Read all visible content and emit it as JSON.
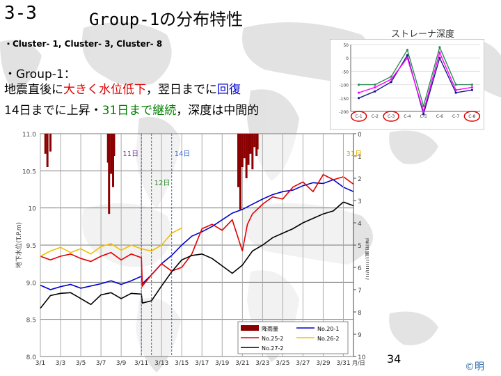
{
  "slide": {
    "number": "3-3",
    "title": "Group-1の分布特性",
    "clusters": "・Cluster- 1,  Cluster- 3,  Cluster- 8",
    "group_heading": "・Group-1：",
    "line1": {
      "a": "地震直後に",
      "b": "大きく水位低下",
      "c": "，翌日までに",
      "d": "回復"
    },
    "line2": {
      "a": "14日までに上昇・",
      "b": "31日まで継続",
      "c": "，深度は中間的"
    },
    "page": "34",
    "copyright": "©明"
  },
  "colors": {
    "red": "#e00000",
    "blue": "#0000cc",
    "green": "#008000",
    "rain": "#8b0000",
    "black": "#000000",
    "yellow": "#f0c000"
  },
  "chart_data": [
    {
      "type": "line",
      "title": "ストレーナ深度",
      "categories": [
        "C-1",
        "C-2",
        "C-3",
        "C-4",
        "C-5",
        "C-6",
        "C-7",
        "C-8"
      ],
      "ylim": [
        -200,
        50
      ],
      "yticks": [
        50,
        0,
        -50,
        -100,
        -150,
        -200
      ],
      "highlighted_categories": [
        "C-1",
        "C-3",
        "C-8"
      ],
      "series": [
        {
          "name": "",
          "color": "#1a1a8c",
          "values": [
            -150,
            -125,
            -90,
            10,
            -210,
            0,
            -130,
            -120
          ]
        },
        {
          "name": "",
          "color": "#ff00ff",
          "values": [
            -130,
            -110,
            -80,
            0,
            -200,
            20,
            -120,
            -110
          ]
        },
        {
          "name": "",
          "color": "#2e8b57",
          "values": [
            -100,
            -100,
            -70,
            30,
            -180,
            40,
            -100,
            -100
          ]
        }
      ]
    },
    {
      "type": "line",
      "xlabel": "月/日",
      "ylabel": "地下水位(T.P.m)",
      "y2label": "降雨量(mm/h)",
      "x_ticks": [
        "3/1",
        "3/3",
        "3/5",
        "3/7",
        "3/9",
        "3/11",
        "3/13",
        "3/15",
        "3/17",
        "3/19",
        "3/21",
        "3/23",
        "3/25",
        "3/27",
        "3/29",
        "3/31"
      ],
      "xlim": [
        1,
        32
      ],
      "y_ticks": [
        11.0,
        10.5,
        10.0,
        9.5,
        9.0,
        8.5,
        8.0
      ],
      "y_tick_labels": [
        "11.0",
        "10.5",
        "10",
        "9.5",
        "9.0",
        "8.5",
        "8.0"
      ],
      "ylim": [
        8.0,
        11.0
      ],
      "y2_ticks": [
        0,
        1,
        2,
        3,
        4,
        5,
        6,
        7,
        8,
        9,
        10
      ],
      "y2lim": [
        0,
        10
      ],
      "annotations": [
        {
          "text": "11日",
          "x": 11.0
        },
        {
          "text": "12日",
          "x": 12.0
        },
        {
          "text": "14日",
          "x": 14.0
        },
        {
          "text": "31日",
          "x": 31.0
        }
      ],
      "legend": [
        "降雨量",
        "No.20-1",
        "No.25-2",
        "No.26-2",
        "No.27-2"
      ],
      "series": [
        {
          "name": "降雨量",
          "kind": "bar",
          "x": [
            1.5,
            1.7,
            2.0,
            7.7,
            7.8,
            8.0,
            8.2,
            8.3,
            20.6,
            20.8,
            21.0,
            21.2,
            21.4,
            21.6,
            21.8,
            22.0,
            22.2,
            22.4,
            22.5
          ],
          "values": [
            0.9,
            1.5,
            0.8,
            1.3,
            3.6,
            1.8,
            2.4,
            1.0,
            2.4,
            3.4,
            1.5,
            1.1,
            2.0,
            1.4,
            0.9,
            1.6,
            0.6,
            1.0,
            0.7
          ]
        },
        {
          "name": "No.20-1",
          "color": "#0000cc",
          "x": [
            1,
            2,
            3,
            4,
            5,
            6,
            7,
            8,
            9,
            10,
            11,
            11.1,
            12,
            13,
            14,
            15,
            16,
            17,
            18,
            19,
            20,
            21,
            22,
            23,
            24,
            25,
            26,
            27,
            28,
            29,
            30,
            31,
            32
          ],
          "values": [
            8.96,
            8.9,
            8.94,
            8.97,
            8.92,
            8.95,
            8.98,
            9.02,
            8.97,
            9.02,
            9.08,
            8.98,
            9.1,
            9.25,
            9.36,
            9.5,
            9.62,
            9.68,
            9.75,
            9.84,
            9.93,
            9.98,
            10.05,
            10.12,
            10.18,
            10.22,
            10.24,
            10.3,
            10.34,
            10.33,
            10.38,
            10.28,
            10.22
          ]
        },
        {
          "name": "No.25-2",
          "color": "#e00000",
          "x": [
            1,
            2,
            3,
            4,
            5,
            6,
            7,
            8,
            9,
            10,
            11,
            11.1,
            12,
            13,
            14,
            15,
            16,
            17,
            18,
            19,
            20,
            21,
            21.5,
            22,
            23,
            24,
            25,
            26,
            27,
            28,
            29,
            30,
            31,
            32
          ],
          "values": [
            9.35,
            9.3,
            9.35,
            9.38,
            9.32,
            9.28,
            9.35,
            9.4,
            9.3,
            9.38,
            9.33,
            8.95,
            9.1,
            9.25,
            9.15,
            9.2,
            9.38,
            9.72,
            9.78,
            9.7,
            9.84,
            9.42,
            9.78,
            9.92,
            10.05,
            10.15,
            10.12,
            10.28,
            10.35,
            10.22,
            10.45,
            10.38,
            10.42,
            10.32
          ]
        },
        {
          "name": "No.26-2",
          "color": "#f0c000",
          "x": [
            1,
            2,
            3,
            4,
            5,
            6,
            7,
            8,
            9,
            10,
            11,
            12,
            13,
            14,
            15
          ],
          "values": [
            9.35,
            9.42,
            9.47,
            9.4,
            9.45,
            9.38,
            9.48,
            9.52,
            9.43,
            9.5,
            9.45,
            9.42,
            9.5,
            9.66,
            9.73
          ]
        },
        {
          "name": "No.27-2",
          "color": "#000000",
          "x": [
            1,
            2,
            3,
            4,
            5,
            6,
            7,
            8,
            9,
            10,
            11,
            11.1,
            12,
            13,
            14,
            15,
            16,
            17,
            18,
            19,
            20,
            21,
            22,
            23,
            24,
            25,
            26,
            27,
            28,
            29,
            30,
            31,
            32
          ],
          "values": [
            8.65,
            8.82,
            8.85,
            8.86,
            8.78,
            8.7,
            8.83,
            8.86,
            8.78,
            8.85,
            8.84,
            8.72,
            8.75,
            8.95,
            9.14,
            9.3,
            9.36,
            9.38,
            9.32,
            9.22,
            9.12,
            9.23,
            9.42,
            9.5,
            9.6,
            9.66,
            9.72,
            9.8,
            9.86,
            9.92,
            9.96,
            10.08,
            10.03
          ]
        }
      ]
    }
  ]
}
